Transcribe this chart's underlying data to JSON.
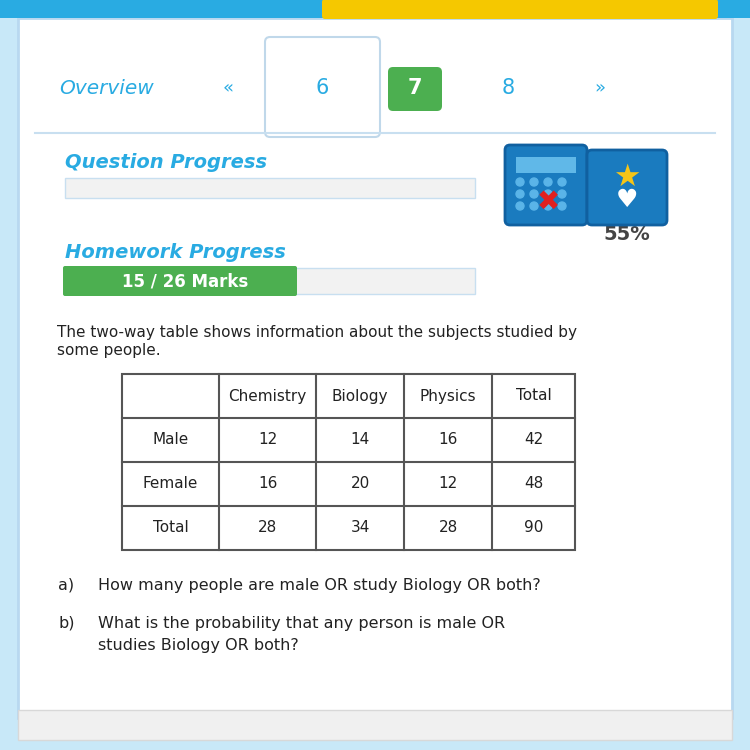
{
  "bg_top_color": "#29abe2",
  "bg_main_color": "#c8e8f8",
  "bg_content_color": "#ffffff",
  "nav_overview_color": "#29abe2",
  "nav_active_bg": "#4caf50",
  "nav_active_color": "#ffffff",
  "nav_inactive_color": "#29abe2",
  "question_progress_label": "Question Progress",
  "question_progress_color": "#29abe2",
  "homework_progress_label": "Homework Progress",
  "homework_progress_color": "#29abe2",
  "marks_label": "15 / 26 Marks",
  "marks_bg": "#4caf50",
  "marks_color": "#ffffff",
  "percent_label": "55%",
  "percent_color": "#444444",
  "intro_line1": "The two-way table shows information about the subjects studied by",
  "intro_line2": "some people.",
  "table_headers": [
    "",
    "Chemistry",
    "Biology",
    "Physics",
    "Total"
  ],
  "table_rows": [
    [
      "Male",
      "12",
      "14",
      "16",
      "42"
    ],
    [
      "Female",
      "16",
      "20",
      "12",
      "48"
    ],
    [
      "Total",
      "28",
      "34",
      "28",
      "90"
    ]
  ],
  "qa_label": "a)",
  "qa_text": "How many people are male OR study Biology OR both?",
  "qb_label": "b)",
  "qb_line1": "What is the probability that any person is male OR",
  "qb_line2": "studies Biology OR both?",
  "table_border_color": "#555555",
  "table_text_color": "#222222",
  "intro_text_color": "#222222",
  "question_text_color": "#222222",
  "yellow_btn_color": "#f5c800",
  "tab6_border": "#c8dff0",
  "nav_line_color": "#c8dff0"
}
